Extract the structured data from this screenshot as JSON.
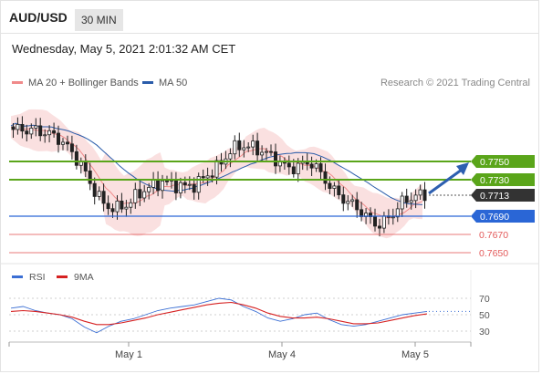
{
  "header": {
    "symbol": "AUD/USD",
    "timeframe": "30 MIN",
    "datetime": "Wednesday, May 5, 2021 2:01:32 AM CET"
  },
  "legend": {
    "ma20": "MA 20 + Bollinger Bands",
    "ma50": "MA 50",
    "ma20_color": "#f08a8a",
    "ma50_color": "#2a5caa",
    "credit": "Research © 2021 Trading Central"
  },
  "chart_data": [
    {
      "type": "candlestick",
      "title": "",
      "ylim": [
        0.7642,
        0.7815
      ],
      "x_ticks": [
        "May 1",
        "May 4",
        "May 5"
      ],
      "levels": [
        {
          "value": "0.7750",
          "style": "resistance",
          "color": "#5aa51a"
        },
        {
          "value": "0.7730",
          "style": "resistance",
          "color": "#5aa51a"
        },
        {
          "value": "0.7713",
          "style": "last",
          "color": "#333333"
        },
        {
          "value": "0.7690",
          "style": "support",
          "color": "#2a66d6"
        },
        {
          "value": "0.7670",
          "style": "support",
          "color": "#e35a5a"
        },
        {
          "value": "0.7650",
          "style": "support",
          "color": "#e35a5a"
        }
      ],
      "series": [
        {
          "name": "MA 20 + Bollinger Bands",
          "color": "#f08a8a"
        },
        {
          "name": "MA 50",
          "color": "#2a5caa"
        }
      ],
      "price_path": [
        0.7785,
        0.7785,
        0.7784,
        0.7781,
        0.7775,
        0.7762,
        0.7745,
        0.772,
        0.7702,
        0.7698,
        0.7703,
        0.7715,
        0.7722,
        0.7728,
        0.7725,
        0.7722,
        0.7725,
        0.7735,
        0.7745,
        0.7762,
        0.7768,
        0.7765,
        0.776,
        0.7752,
        0.7742,
        0.7745,
        0.775,
        0.7735,
        0.7718,
        0.7708,
        0.77,
        0.7688,
        0.768,
        0.769,
        0.7705,
        0.7712,
        0.7713
      ],
      "forecast_arrow": {
        "from": 0.7713,
        "to": 0.7748
      }
    },
    {
      "type": "line",
      "title": "",
      "ylim": [
        20,
        80
      ],
      "y_ticks": [
        "70",
        "50",
        "30"
      ],
      "series": [
        {
          "name": "RSI",
          "color": "#3b6fd4",
          "values": [
            58,
            60,
            55,
            52,
            50,
            45,
            35,
            28,
            36,
            42,
            45,
            50,
            55,
            58,
            60,
            62,
            66,
            70,
            68,
            60,
            54,
            46,
            42,
            45,
            50,
            52,
            44,
            38,
            36,
            38,
            42,
            46,
            50,
            52,
            54
          ]
        },
        {
          "name": "9MA",
          "color": "#d62222",
          "values": [
            54,
            55,
            54,
            52,
            50,
            47,
            42,
            38,
            38,
            40,
            43,
            46,
            50,
            53,
            56,
            59,
            62,
            64,
            65,
            62,
            58,
            52,
            48,
            46,
            46,
            47,
            45,
            42,
            39,
            39,
            40,
            43,
            46,
            49,
            51
          ]
        }
      ]
    }
  ],
  "rsi_legend": {
    "rsi": "RSI",
    "ma9": "9MA"
  }
}
